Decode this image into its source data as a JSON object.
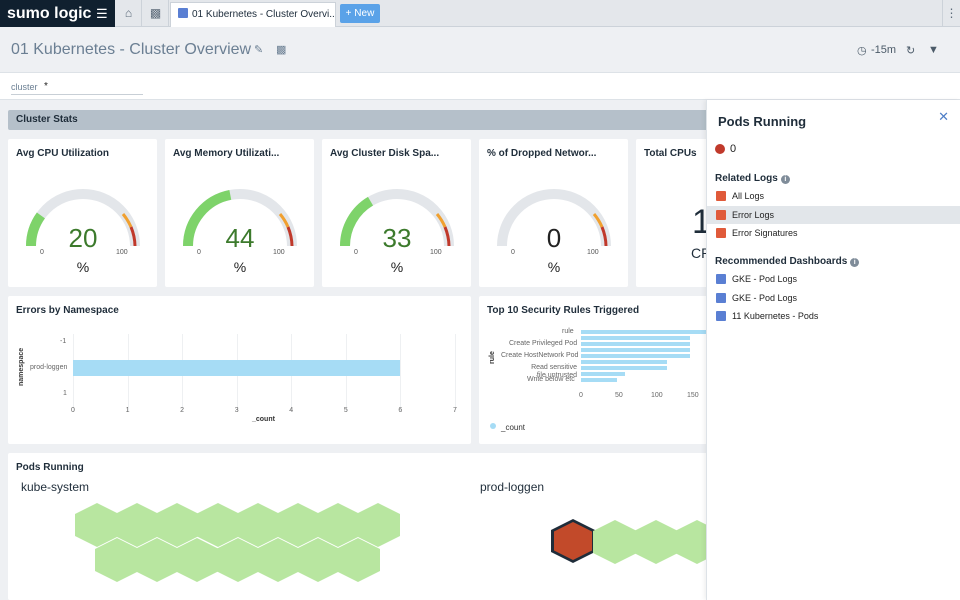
{
  "topbar": {
    "brand": "sumo logic",
    "tab_title": "01 Kubernetes - Cluster Overvi...",
    "new_label": "New"
  },
  "dashboard": {
    "title": "01 Kubernetes - Cluster Overview",
    "time_range": "-15m"
  },
  "filter": {
    "label": "cluster",
    "value": "*"
  },
  "section": {
    "title": "Cluster Stats"
  },
  "gauges": [
    {
      "title": "Avg CPU Utilization",
      "value": "20",
      "unit": "%",
      "min": "0",
      "max": "100"
    },
    {
      "title": "Avg Memory Utilizati...",
      "value": "44",
      "unit": "%",
      "min": "0",
      "max": "100"
    },
    {
      "title": "Avg Cluster Disk Spa...",
      "value": "33",
      "unit": "%",
      "min": "0",
      "max": "100"
    },
    {
      "title": "% of Dropped Networ...",
      "value": "0",
      "unit": "%",
      "min": "0",
      "max": "100"
    }
  ],
  "total_cpus": {
    "title": "Total CPUs",
    "value": "1",
    "sub": "CP"
  },
  "errors_by_namespace": {
    "title": "Errors by Namespace",
    "y_axis_label": "namespace",
    "x_axis_label": "_count",
    "y_ticks": [
      "-1",
      "prod-loggen",
      "1"
    ],
    "x_ticks": [
      "0",
      "1",
      "2",
      "3",
      "4",
      "5",
      "6",
      "7"
    ]
  },
  "security_rules": {
    "title": "Top 10 Security Rules Triggered",
    "y_axis_label": "rule",
    "rule_labels": [
      "rule",
      "Create Privileged Pod",
      "Create HostNetwork Pod",
      "Read sensitive file untrusted",
      "Write below etc"
    ],
    "x_ticks": [
      "0",
      "50",
      "100",
      "150"
    ],
    "legend": "_count"
  },
  "pods_running": {
    "title": "Pods Running",
    "groups": [
      {
        "name": "kube-system"
      },
      {
        "name": "prod-loggen"
      }
    ]
  },
  "side_panel": {
    "title": "Pods Running",
    "value": "0",
    "related_logs_heading": "Related Logs",
    "related_logs": [
      "All Logs",
      "Error Logs",
      "Error Signatures"
    ],
    "recommended_heading": "Recommended Dashboards",
    "recommended": [
      "GKE - Pod Logs",
      "GKE - Pod Logs",
      "11 Kubernetes - Pods"
    ]
  },
  "colors": {
    "gauge_green": "#7ed36a",
    "gauge_orange": "#f0a030",
    "gauge_red": "#c0392b",
    "bar_blue": "#a6dcf5",
    "hex_green": "#b8e6a0",
    "hex_red": "#c24a2a",
    "brand_dark": "#10202f"
  },
  "chart_data": [
    {
      "type": "bar",
      "title": "Errors by Namespace",
      "orientation": "horizontal",
      "categories": [
        "prod-loggen"
      ],
      "values": [
        6
      ],
      "xlabel": "_count",
      "ylabel": "namespace",
      "xlim": [
        0,
        7
      ]
    },
    {
      "type": "bar",
      "title": "Top 10 Security Rules Triggered",
      "orientation": "horizontal",
      "categories": [
        "rule",
        "Create Privileged Pod",
        "Create HostNetwork Pod",
        "Read sensitive file untrusted",
        "Write below etc"
      ],
      "values": [
        175,
        150,
        150,
        118,
        60
      ],
      "xlabel": "_count",
      "ylabel": "rule",
      "xlim": [
        0,
        175
      ],
      "legend": "_count"
    }
  ]
}
